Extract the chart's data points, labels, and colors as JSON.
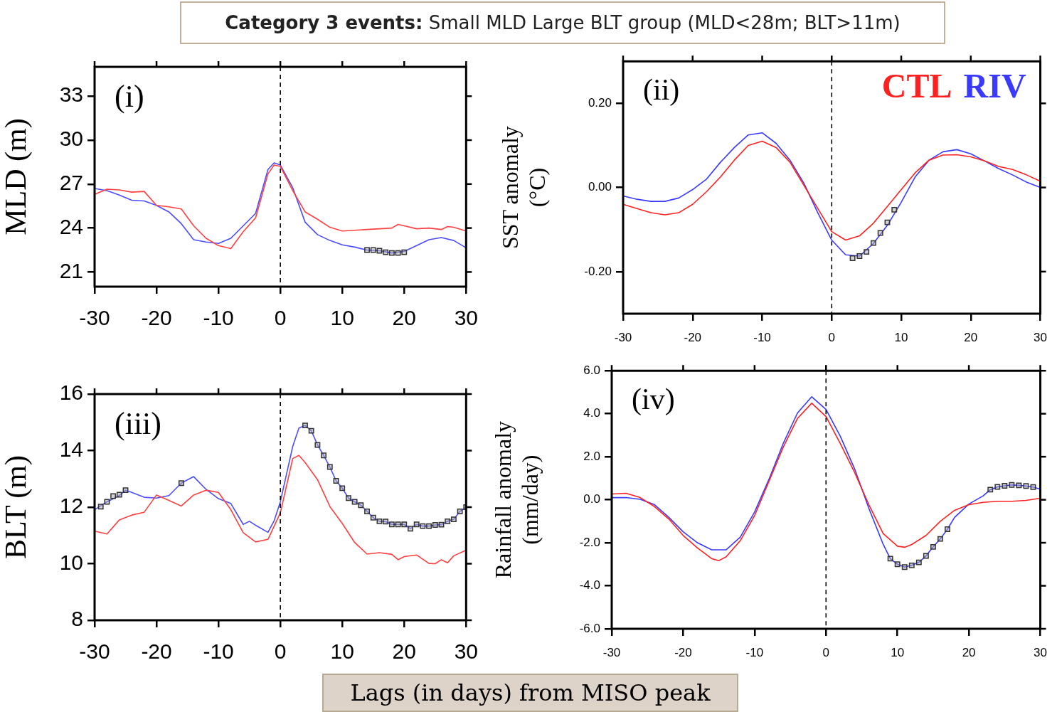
{
  "chart_data": [
    {
      "type": "line",
      "title": "Category 3 events: Small MLD Large BLT group (MLD<28m; BLT>11m)",
      "ylabel": "MLD (m)",
      "annotations": [
        "(i)"
      ],
      "xlim": [
        -30,
        30
      ],
      "xticks": [
        -30,
        -20,
        -10,
        0,
        10,
        20,
        30
      ],
      "ylim": [
        20,
        35
      ],
      "yticks": [
        21,
        24,
        27,
        30,
        33
      ],
      "grid": false,
      "legend": false,
      "ref_lines": [
        {
          "axis": "x",
          "value": 0,
          "line_style": "dashed",
          "color": "#000000"
        }
      ],
      "series": [
        {
          "color": "#ff4040",
          "x": [
            -30,
            -28,
            -26,
            -24,
            -22,
            -20,
            -18,
            -16,
            -14,
            -12,
            -10,
            -8,
            -6,
            -4,
            -2,
            -1,
            0,
            2,
            4,
            6,
            8,
            10,
            12,
            14,
            16,
            18,
            19,
            20,
            22,
            24,
            26,
            27,
            28,
            30
          ],
          "values": [
            26.3,
            26.65,
            26.6,
            26.45,
            26.5,
            25.55,
            25.45,
            25.3,
            24.15,
            23.3,
            22.8,
            22.6,
            23.75,
            24.7,
            27.7,
            28.3,
            28.2,
            26.55,
            25.1,
            24.6,
            24.05,
            23.8,
            23.85,
            23.9,
            23.95,
            24.0,
            24.25,
            24.15,
            23.95,
            24.0,
            23.9,
            24.1,
            24.05,
            23.8
          ]
        },
        {
          "color": "#4c4cff",
          "x": [
            -30,
            -28,
            -26,
            -24,
            -22,
            -20,
            -18,
            -16,
            -14,
            -12,
            -10,
            -8,
            -6,
            -4,
            -2,
            -1,
            0,
            2,
            4,
            6,
            8,
            10,
            12,
            14,
            16,
            18,
            20,
            22,
            24,
            26,
            28,
            30
          ],
          "values": [
            26.7,
            26.55,
            26.25,
            25.9,
            25.85,
            25.55,
            25.1,
            24.3,
            23.2,
            23.05,
            22.95,
            23.3,
            24.15,
            25.0,
            28.0,
            28.45,
            28.3,
            26.75,
            24.4,
            23.55,
            23.15,
            22.85,
            22.7,
            22.5,
            22.45,
            22.3,
            22.4,
            22.8,
            23.2,
            23.35,
            23.15,
            22.65
          ]
        },
        {
          "type": "scatter",
          "marker": "square",
          "color": "#333333",
          "x": [
            14,
            15,
            16,
            17,
            18,
            19,
            20
          ],
          "values": [
            22.5,
            22.5,
            22.45,
            22.35,
            22.3,
            22.3,
            22.35
          ]
        }
      ]
    },
    {
      "type": "line",
      "ylabel": "SST anomaly\n(°C)",
      "annotations": [
        "(ii)"
      ],
      "xlim": [
        -30,
        30
      ],
      "xticks": [
        -30,
        -20,
        -10,
        0,
        10,
        20,
        30
      ],
      "ylim": [
        -0.3,
        0.3
      ],
      "yticks": [
        {
          "value": -0.2,
          "label": "-0.20"
        },
        {
          "value": 0,
          "label": "0.00"
        },
        {
          "value": 0.2,
          "label": "0.20"
        }
      ],
      "grid": false,
      "legend": "top right",
      "ref_lines": [
        {
          "axis": "x",
          "value": 0,
          "line_style": "dashed",
          "color": "#000000"
        }
      ],
      "series": [
        {
          "name": "CTL",
          "color": "#ff2020",
          "x": [
            -30,
            -28,
            -26,
            -24,
            -22,
            -20,
            -18,
            -16,
            -14,
            -12,
            -10,
            -8,
            -6,
            -4,
            -2,
            0,
            2,
            4,
            6,
            8,
            10,
            12,
            14,
            16,
            18,
            20,
            22,
            24,
            26,
            28,
            30
          ],
          "values": [
            -0.04,
            -0.05,
            -0.06,
            -0.065,
            -0.06,
            -0.04,
            -0.01,
            0.025,
            0.065,
            0.1,
            0.11,
            0.095,
            0.06,
            0.005,
            -0.05,
            -0.105,
            -0.125,
            -0.115,
            -0.085,
            -0.045,
            -0.005,
            0.035,
            0.065,
            0.077,
            0.078,
            0.073,
            0.063,
            0.05,
            0.043,
            0.03,
            0.015
          ]
        },
        {
          "name": "RIV",
          "color": "#3a3aff",
          "x": [
            -30,
            -28,
            -26,
            -24,
            -22,
            -20,
            -18,
            -16,
            -14,
            -12,
            -10,
            -8,
            -6,
            -4,
            -2,
            0,
            2,
            4,
            6,
            8,
            10,
            12,
            14,
            16,
            18,
            20,
            22,
            24,
            26,
            28,
            30
          ],
          "values": [
            -0.02,
            -0.028,
            -0.033,
            -0.033,
            -0.025,
            -0.005,
            0.02,
            0.06,
            0.095,
            0.125,
            0.13,
            0.105,
            0.065,
            0.01,
            -0.06,
            -0.125,
            -0.16,
            -0.163,
            -0.133,
            -0.09,
            -0.035,
            0.025,
            0.065,
            0.085,
            0.09,
            0.08,
            0.063,
            0.045,
            0.03,
            0.013,
            0.0
          ]
        },
        {
          "type": "scatter",
          "marker": "square",
          "color": "#333333",
          "x": [
            3,
            4,
            5,
            6,
            7,
            8,
            9
          ],
          "values": [
            -0.168,
            -0.163,
            -0.153,
            -0.132,
            -0.108,
            -0.083,
            -0.053
          ]
        }
      ]
    },
    {
      "type": "line",
      "xlabel": "Lags (in days) from MISO peak",
      "ylabel": "BLT (m)",
      "annotations": [
        "(iii)"
      ],
      "xlim": [
        -30,
        30
      ],
      "xticks": [
        -30,
        -20,
        -10,
        0,
        10,
        20,
        30
      ],
      "ylim": [
        8,
        16
      ],
      "yticks": [
        8,
        10,
        12,
        14,
        16
      ],
      "grid": false,
      "legend": false,
      "ref_lines": [
        {
          "axis": "x",
          "value": 0,
          "line_style": "dashed",
          "color": "#000000"
        }
      ],
      "series": [
        {
          "color": "#ff4040",
          "x": [
            -30,
            -28,
            -26,
            -24,
            -22,
            -20,
            -18,
            -16,
            -14,
            -12,
            -10,
            -8,
            -6,
            -4,
            -2,
            0,
            2,
            3,
            4,
            6,
            8,
            10,
            12,
            14,
            16,
            18,
            19,
            20,
            22,
            24,
            25,
            26,
            27,
            28,
            30
          ],
          "values": [
            11.15,
            11.05,
            11.55,
            11.72,
            11.82,
            12.43,
            12.24,
            12.04,
            12.43,
            12.6,
            12.52,
            11.91,
            11.1,
            10.77,
            10.86,
            11.8,
            13.72,
            13.83,
            13.58,
            12.97,
            12.02,
            11.42,
            10.75,
            10.34,
            10.39,
            10.33,
            10.14,
            10.25,
            10.31,
            10.01,
            10.0,
            10.14,
            10.03,
            10.28,
            10.48
          ]
        },
        {
          "color": "#4c4cff",
          "x": [
            -30,
            -28,
            -26,
            -25,
            -24,
            -22,
            -20,
            -18,
            -16,
            -14,
            -12,
            -10,
            -8,
            -6,
            -5,
            -4,
            -2,
            -1,
            0,
            2,
            3,
            4,
            5,
            6,
            7,
            8,
            9,
            10,
            11,
            12,
            13,
            14,
            15,
            16,
            17,
            18,
            19,
            20,
            21,
            22,
            23,
            24,
            25,
            26,
            27,
            28,
            29,
            30
          ],
          "values": [
            11.91,
            12.19,
            12.41,
            12.6,
            12.52,
            12.35,
            12.32,
            12.41,
            12.85,
            13.08,
            12.63,
            12.3,
            12.13,
            11.39,
            11.5,
            11.36,
            11.11,
            11.52,
            12.19,
            14.15,
            14.8,
            14.89,
            14.7,
            14.2,
            13.83,
            13.42,
            12.93,
            12.67,
            12.32,
            12.19,
            12.07,
            11.85,
            11.63,
            11.5,
            11.49,
            11.39,
            11.39,
            11.39,
            11.24,
            11.39,
            11.33,
            11.33,
            11.37,
            11.38,
            11.5,
            11.57,
            11.85,
            12.0
          ]
        },
        {
          "type": "scatter",
          "marker": "square",
          "color": "#333333",
          "x": [
            -29,
            -28,
            -27,
            -26,
            -25,
            -16,
            4,
            5,
            6,
            7,
            8,
            9,
            10,
            11,
            12,
            13,
            14,
            15,
            16,
            17,
            18,
            19,
            20,
            21,
            22,
            23,
            24,
            25,
            26,
            27,
            28,
            29,
            30
          ],
          "values": [
            12.02,
            12.19,
            12.39,
            12.44,
            12.6,
            12.85,
            14.89,
            14.7,
            14.2,
            13.83,
            13.42,
            12.93,
            12.67,
            12.32,
            12.19,
            12.07,
            11.85,
            11.63,
            11.5,
            11.49,
            11.39,
            11.39,
            11.39,
            11.24,
            11.39,
            11.33,
            11.33,
            11.37,
            11.38,
            11.5,
            11.57,
            11.85,
            12.0
          ]
        }
      ]
    },
    {
      "type": "line",
      "ylabel": "Rainfall anomaly\n(mm/day)",
      "annotations": [
        "(iv)"
      ],
      "xlim": [
        -30,
        30
      ],
      "xticks": [
        -30,
        -20,
        -10,
        0,
        10,
        20,
        30
      ],
      "ylim": [
        -6,
        6
      ],
      "yticks": [
        {
          "value": -6,
          "label": "-6.0"
        },
        {
          "value": -4,
          "label": "-4.0"
        },
        {
          "value": -2,
          "label": "-2.0"
        },
        {
          "value": 0,
          "label": "0.0"
        },
        {
          "value": 2,
          "label": "2.0"
        },
        {
          "value": 4,
          "label": "4.0"
        },
        {
          "value": 6,
          "label": "6.0"
        }
      ],
      "grid": false,
      "legend": false,
      "ref_lines": [
        {
          "axis": "x",
          "value": 0,
          "line_style": "dashed",
          "color": "#000000"
        }
      ],
      "series": [
        {
          "color": "#ff2020",
          "x": [
            -30,
            -28,
            -26,
            -24,
            -22,
            -20,
            -18,
            -16,
            -15,
            -14,
            -12,
            -10,
            -8,
            -6,
            -4,
            -2,
            0,
            2,
            4,
            6,
            8,
            10,
            11,
            12,
            14,
            16,
            18,
            20,
            22,
            24,
            26,
            28,
            30
          ],
          "values": [
            0.27,
            0.3,
            0.1,
            -0.32,
            -0.9,
            -1.66,
            -2.24,
            -2.74,
            -2.83,
            -2.66,
            -1.9,
            -0.74,
            0.85,
            2.44,
            3.78,
            4.49,
            3.87,
            2.61,
            1.27,
            -0.23,
            -1.57,
            -2.16,
            -2.21,
            -2.08,
            -1.66,
            -1.0,
            -0.49,
            -0.23,
            -0.12,
            -0.07,
            -0.07,
            -0.03,
            0.07
          ]
        },
        {
          "color": "#3a3aff",
          "x": [
            -30,
            -28,
            -26,
            -24,
            -22,
            -20,
            -18,
            -16,
            -14,
            -12,
            -10,
            -8,
            -6,
            -4,
            -2,
            0,
            2,
            4,
            6,
            8,
            9,
            10,
            11,
            12,
            13,
            14,
            15,
            16,
            17,
            18,
            20,
            22,
            23,
            24,
            25,
            26,
            27,
            28,
            29,
            30
          ],
          "values": [
            0.1,
            0.1,
            0.02,
            -0.23,
            -0.82,
            -1.49,
            -2.0,
            -2.33,
            -2.33,
            -1.74,
            -0.57,
            0.94,
            2.61,
            4.03,
            4.79,
            4.2,
            2.95,
            1.44,
            -0.4,
            -2.07,
            -2.74,
            -3.0,
            -3.13,
            -3.05,
            -2.91,
            -2.61,
            -2.19,
            -1.82,
            -1.37,
            -0.82,
            -0.2,
            0.18,
            0.47,
            0.6,
            0.65,
            0.69,
            0.67,
            0.64,
            0.59,
            0.49
          ]
        },
        {
          "type": "scatter",
          "marker": "square",
          "color": "#333333",
          "x": [
            9,
            10,
            11,
            12,
            13,
            14,
            15,
            16,
            17,
            23,
            24,
            25,
            26,
            27,
            28,
            29
          ],
          "values": [
            -2.74,
            -3.0,
            -3.13,
            -3.05,
            -2.91,
            -2.61,
            -2.19,
            -1.82,
            -1.37,
            0.47,
            0.6,
            0.65,
            0.69,
            0.67,
            0.64,
            0.59
          ]
        }
      ]
    }
  ]
}
